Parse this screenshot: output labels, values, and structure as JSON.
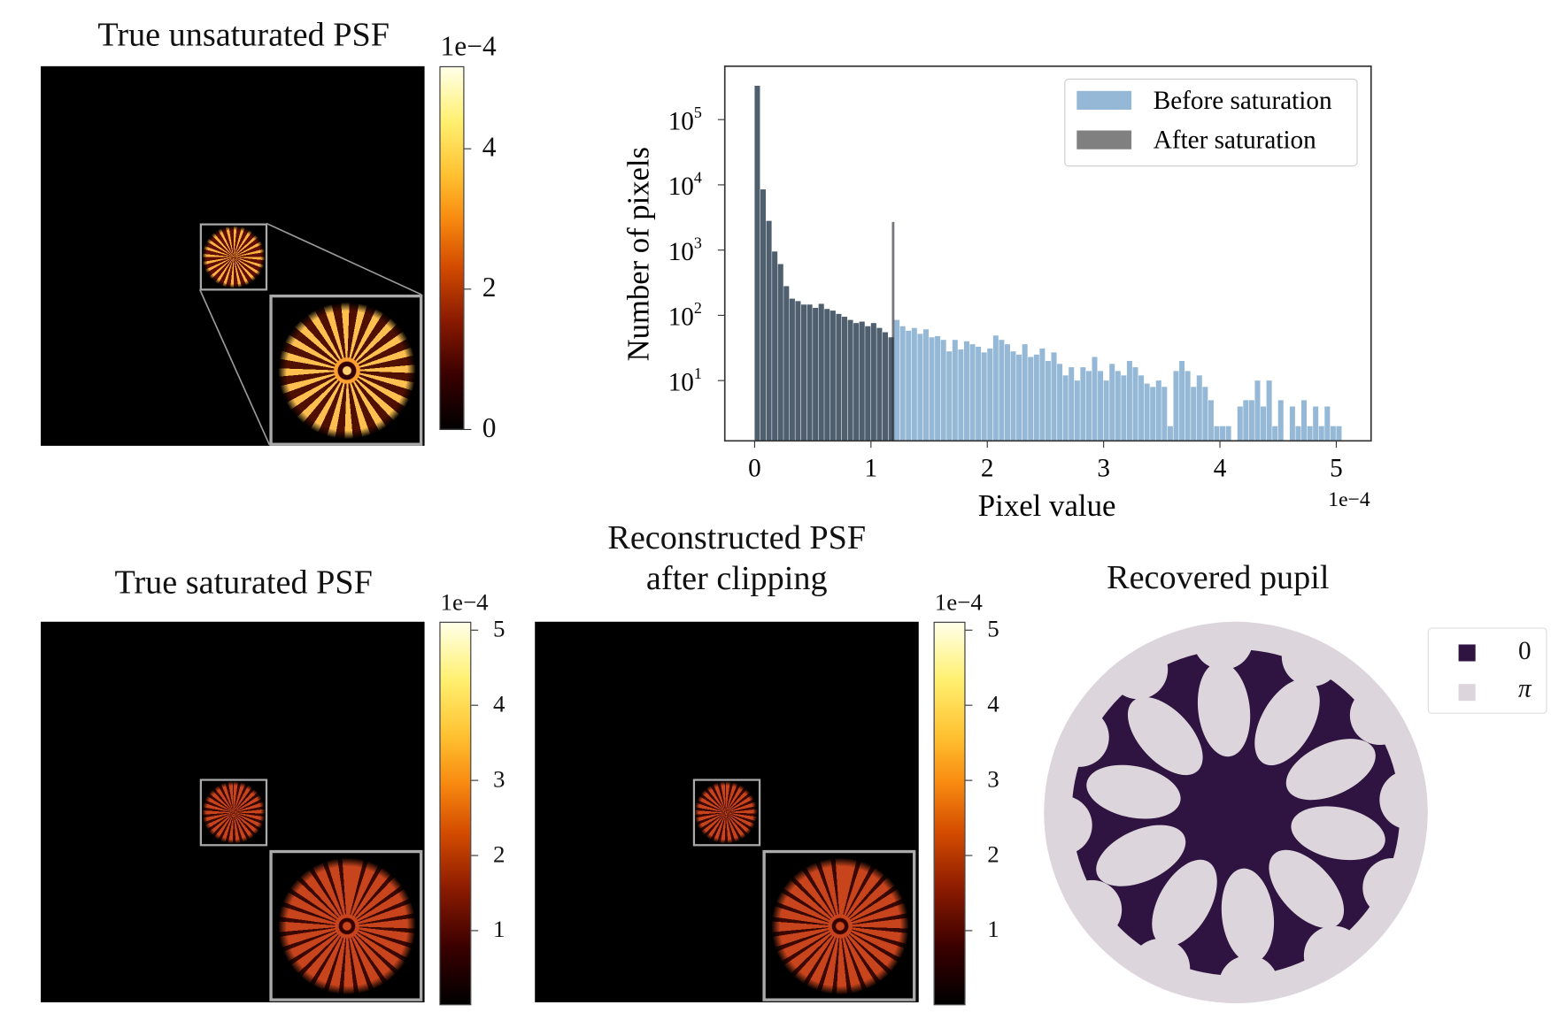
{
  "panels": {
    "unsaturated": {
      "title": "True unsaturated PSF",
      "colorbar": {
        "exponent": "1e−4",
        "ticks": [
          "0",
          "2",
          "4"
        ],
        "range": [
          0,
          5.2
        ],
        "colormap": "afmhot"
      }
    },
    "saturated": {
      "title": "True saturated PSF",
      "colorbar": {
        "exponent": "1e−4",
        "ticks": [
          "1",
          "2",
          "3",
          "4",
          "5"
        ],
        "range": [
          0,
          5.2
        ],
        "colormap": "afmhot"
      }
    },
    "reconstructed": {
      "title_line1": "Reconstructed PSF",
      "title_line2": "after clipping",
      "colorbar": {
        "exponent": "1e−4",
        "ticks": [
          "1",
          "2",
          "3",
          "4",
          "5"
        ],
        "range": [
          0,
          5.2
        ],
        "colormap": "afmhot"
      }
    },
    "pupil": {
      "title": "Recovered pupil",
      "legend": [
        {
          "label": "0",
          "color": "#2f1340"
        },
        {
          "label": "π",
          "color": "#dcd6dc"
        }
      ]
    }
  },
  "chart_data": {
    "type": "bar",
    "xlabel": "Pixel value",
    "x_exponent": "1e−4",
    "ylabel": "Number of pixels",
    "yscale": "log",
    "xlim": [
      -0.25,
      5.3
    ],
    "ylim": [
      1.2,
      550000
    ],
    "x_ticks": [
      "0",
      "1",
      "2",
      "3",
      "4",
      "5"
    ],
    "y_ticks": [
      {
        "base": "10",
        "exp": "1"
      },
      {
        "base": "10",
        "exp": "2"
      },
      {
        "base": "10",
        "exp": "3"
      },
      {
        "base": "10",
        "exp": "4"
      },
      {
        "base": "10",
        "exp": "5"
      }
    ],
    "legend_position": "top-right",
    "bin_width": 0.05,
    "series": [
      {
        "name": "Before saturation",
        "color": "#94b8d6",
        "x": [
          0,
          0.05,
          0.1,
          0.15,
          0.2,
          0.25,
          0.3,
          0.35,
          0.4,
          0.45,
          0.5,
          0.55,
          0.6,
          0.65,
          0.7,
          0.75,
          0.8,
          0.85,
          0.9,
          0.95,
          1.0,
          1.05,
          1.1,
          1.15,
          1.2,
          1.25,
          1.3,
          1.35,
          1.4,
          1.45,
          1.5,
          1.55,
          1.6,
          1.65,
          1.7,
          1.75,
          1.8,
          1.85,
          1.9,
          1.95,
          2.0,
          2.05,
          2.1,
          2.15,
          2.2,
          2.25,
          2.3,
          2.35,
          2.4,
          2.45,
          2.5,
          2.55,
          2.6,
          2.65,
          2.7,
          2.75,
          2.8,
          2.85,
          2.9,
          2.95,
          3.0,
          3.05,
          3.1,
          3.15,
          3.2,
          3.25,
          3.3,
          3.35,
          3.4,
          3.45,
          3.5,
          3.55,
          3.6,
          3.65,
          3.7,
          3.75,
          3.8,
          3.85,
          3.9,
          3.95,
          4.0,
          4.05,
          4.1,
          4.15,
          4.2,
          4.25,
          4.3,
          4.35,
          4.4,
          4.45,
          4.5,
          4.55,
          4.6,
          4.65,
          4.7,
          4.75,
          4.8,
          4.85,
          4.9,
          4.95,
          5.0
        ],
        "counts": [
          330000,
          8500,
          2800,
          950,
          610,
          280,
          180,
          165,
          146,
          146,
          130,
          150,
          125,
          118,
          105,
          95,
          85,
          76,
          80,
          68,
          76,
          64,
          55,
          46,
          85,
          68,
          58,
          64,
          52,
          61,
          46,
          48,
          42,
          28,
          42,
          30,
          40,
          36,
          33,
          27,
          31,
          49,
          42,
          36,
          28,
          25,
          36,
          23,
          25,
          31,
          20,
          27,
          18,
          12,
          16,
          10,
          16,
          14,
          23,
          14,
          10,
          18,
          14,
          12,
          20,
          16,
          12,
          9,
          8,
          10,
          8,
          2,
          14,
          20,
          14,
          8,
          12,
          8,
          5,
          2,
          2,
          2,
          0,
          4,
          5,
          5,
          10,
          4,
          10,
          2,
          5,
          0,
          4,
          2,
          5,
          2,
          4,
          2,
          4,
          2,
          2
        ]
      },
      {
        "name": "After saturation",
        "color": "#808080",
        "x": [
          0,
          0.05,
          0.1,
          0.15,
          0.2,
          0.25,
          0.3,
          0.35,
          0.4,
          0.45,
          0.5,
          0.55,
          0.6,
          0.65,
          0.7,
          0.75,
          0.8,
          0.85,
          0.9,
          0.95,
          1.0,
          1.05,
          1.1,
          1.15,
          1.18
        ],
        "counts": [
          330000,
          8500,
          2800,
          950,
          610,
          280,
          180,
          165,
          146,
          146,
          130,
          150,
          125,
          118,
          105,
          95,
          85,
          76,
          80,
          68,
          76,
          64,
          55,
          46,
          2700
        ]
      }
    ]
  }
}
